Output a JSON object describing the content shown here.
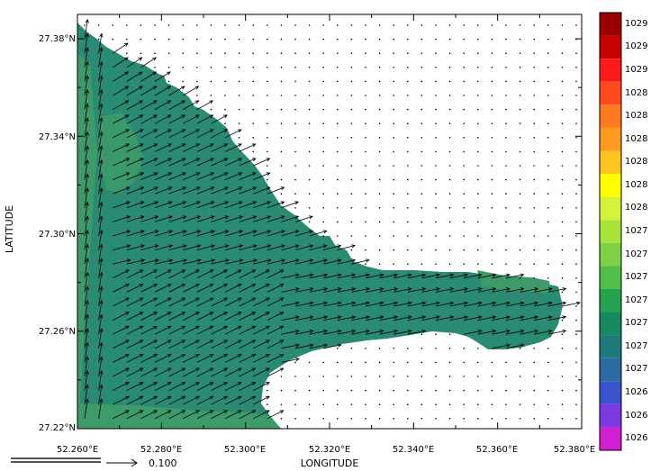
{
  "axes": {
    "xlabel": "LONGITUDE",
    "ylabel": "LATITUDE",
    "x_ticks": [
      "52.260°E",
      "52.280°E",
      "52.300°E",
      "52.320°E",
      "52.340°E",
      "52.360°E",
      "52.380°E"
    ],
    "y_ticks": [
      "27.38°N",
      "27.34°N",
      "27.30°N",
      "27.26°N",
      "27.22°N"
    ],
    "x_range": [
      52.26,
      52.38
    ],
    "y_range": [
      27.22,
      27.39
    ]
  },
  "reference_vector": {
    "value": "0.100"
  },
  "colorbar": {
    "labels": [
      "1029",
      "1029",
      "1029",
      "1028",
      "1028",
      "1028",
      "1028",
      "1028",
      "1028",
      "1027",
      "1027",
      "1027",
      "1027",
      "1027",
      "1027",
      "1027",
      "1026",
      "1026",
      "1026"
    ],
    "colors": [
      "#9b0000",
      "#c40000",
      "#ff1a1a",
      "#ff4a1e",
      "#ff7a1e",
      "#ff9a1e",
      "#ffc41e",
      "#ffff00",
      "#d4f23a",
      "#a8e33a",
      "#7ed145",
      "#4fbf4a",
      "#26a34f",
      "#168a5f",
      "#1f7b7b",
      "#2d69a3",
      "#3a55cc",
      "#7a3ae0",
      "#d21ed2"
    ]
  },
  "region_colors": {
    "land": "#ffffff",
    "water_main": "#2a8a72",
    "water_light": "#3e9a68"
  }
}
